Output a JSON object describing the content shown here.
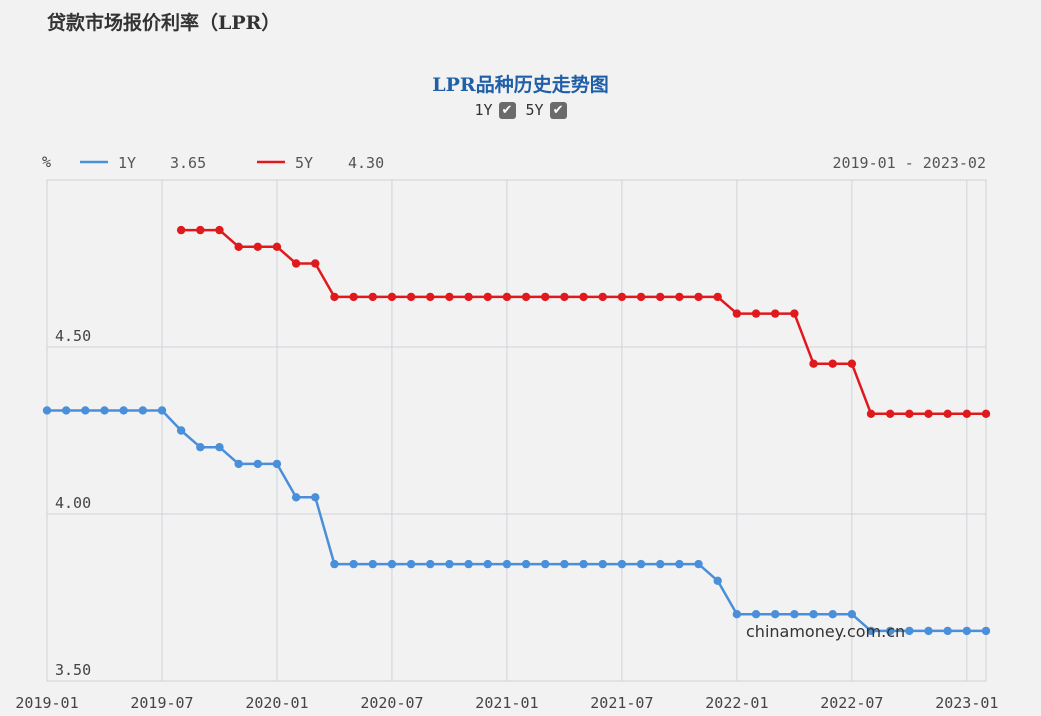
{
  "page": {
    "heading": "贷款市场报价利率（LPR）"
  },
  "toggles": [
    {
      "label": "1Y",
      "checked": true
    },
    {
      "label": "5Y",
      "checked": true
    }
  ],
  "watermark": "chinamoney.com.cn",
  "chart_data": {
    "type": "line",
    "title": "LPR品种历史走势图",
    "ylabel": "%",
    "date_range": "2019-01 - 2023-02",
    "ylim": [
      3.5,
      5.0
    ],
    "yticks": [
      3.5,
      4.0,
      4.5
    ],
    "ytick_labels": [
      "3.50",
      "4.00",
      "4.50"
    ],
    "xtick_labels": [
      "2019-01",
      "2019-07",
      "2020-01",
      "2020-07",
      "2021-01",
      "2021-07",
      "2022-01",
      "2022-07",
      "2023-01"
    ],
    "grid": true,
    "legend_position": "top-left",
    "colors": {
      "1Y": "#4a8fd9",
      "5Y": "#e0191d"
    },
    "x": [
      "2019-01",
      "2019-02",
      "2019-03",
      "2019-04",
      "2019-05",
      "2019-06",
      "2019-07",
      "2019-08",
      "2019-09",
      "2019-10",
      "2019-11",
      "2019-12",
      "2020-01",
      "2020-02",
      "2020-03",
      "2020-04",
      "2020-05",
      "2020-06",
      "2020-07",
      "2020-08",
      "2020-09",
      "2020-10",
      "2020-11",
      "2020-12",
      "2021-01",
      "2021-02",
      "2021-03",
      "2021-04",
      "2021-05",
      "2021-06",
      "2021-07",
      "2021-08",
      "2021-09",
      "2021-10",
      "2021-11",
      "2021-12",
      "2022-01",
      "2022-02",
      "2022-03",
      "2022-04",
      "2022-05",
      "2022-06",
      "2022-07",
      "2022-08",
      "2022-09",
      "2022-10",
      "2022-11",
      "2022-12",
      "2023-01",
      "2023-02"
    ],
    "series": [
      {
        "name": "1Y",
        "legend_value": "3.65",
        "values": [
          4.31,
          4.31,
          4.31,
          4.31,
          4.31,
          4.31,
          4.31,
          4.25,
          4.2,
          4.2,
          4.15,
          4.15,
          4.15,
          4.05,
          4.05,
          3.85,
          3.85,
          3.85,
          3.85,
          3.85,
          3.85,
          3.85,
          3.85,
          3.85,
          3.85,
          3.85,
          3.85,
          3.85,
          3.85,
          3.85,
          3.85,
          3.85,
          3.85,
          3.85,
          3.85,
          3.8,
          3.7,
          3.7,
          3.7,
          3.7,
          3.7,
          3.7,
          3.7,
          3.65,
          3.65,
          3.65,
          3.65,
          3.65,
          3.65,
          3.65
        ]
      },
      {
        "name": "5Y",
        "legend_value": "4.30",
        "values": [
          null,
          null,
          null,
          null,
          null,
          null,
          null,
          4.85,
          4.85,
          4.85,
          4.8,
          4.8,
          4.8,
          4.75,
          4.75,
          4.65,
          4.65,
          4.65,
          4.65,
          4.65,
          4.65,
          4.65,
          4.65,
          4.65,
          4.65,
          4.65,
          4.65,
          4.65,
          4.65,
          4.65,
          4.65,
          4.65,
          4.65,
          4.65,
          4.65,
          4.65,
          4.6,
          4.6,
          4.6,
          4.6,
          4.45,
          4.45,
          4.45,
          4.3,
          4.3,
          4.3,
          4.3,
          4.3,
          4.3,
          4.3
        ]
      }
    ]
  }
}
